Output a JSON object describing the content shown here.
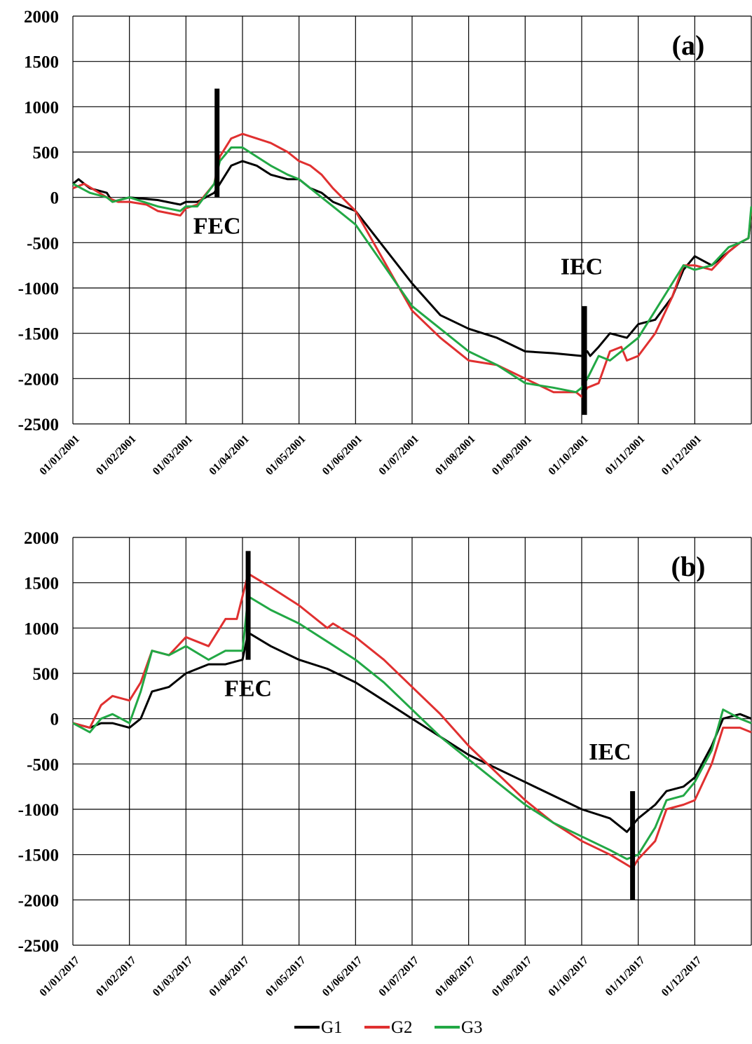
{
  "chart_data": [
    {
      "type": "line",
      "panel_label": "(a)",
      "ylim": [
        -2500,
        2000
      ],
      "yticks": [
        2000,
        1500,
        1000,
        500,
        0,
        -500,
        -1000,
        -1500,
        -2000,
        -2500
      ],
      "xtick_labels": [
        "01/01/2001",
        "01/02/2001",
        "01/03/2001",
        "01/04/2001",
        "01/05/2001",
        "01/06/2001",
        "01/07/2001",
        "01/08/2001",
        "01/09/2001",
        "01/10/2001",
        "01/11/2001",
        "01/12/2001"
      ],
      "x_unit": "month index (0 = 01/01/2001, 12 = 31/12/2001)",
      "grid": true,
      "series": [
        {
          "name": "G1",
          "color": "#000000",
          "x": [
            0,
            0.1,
            0.3,
            0.6,
            0.7,
            1.0,
            1.5,
            1.9,
            2.0,
            2.2,
            2.5,
            2.6,
            2.8,
            3.0,
            3.25,
            3.5,
            3.8,
            4.0,
            4.2,
            4.4,
            4.6,
            5.0,
            5.5,
            6.0,
            6.5,
            7.0,
            7.5,
            8.0,
            8.5,
            9.0,
            9.1,
            9.15,
            9.3,
            9.5,
            9.8,
            10.0,
            10.3,
            10.6,
            10.8,
            11.0,
            11.3,
            11.6,
            11.8,
            11.95,
            12.0
          ],
          "y": [
            150,
            200,
            100,
            50,
            -50,
            0,
            -30,
            -80,
            -50,
            -50,
            50,
            150,
            350,
            400,
            350,
            250,
            200,
            200,
            100,
            50,
            -50,
            -150,
            -550,
            -950,
            -1300,
            -1450,
            -1550,
            -1700,
            -1720,
            -1750,
            -1700,
            -1750,
            -1650,
            -1500,
            -1550,
            -1400,
            -1350,
            -1100,
            -800,
            -650,
            -750,
            -600,
            -500,
            -450,
            -200
          ]
        },
        {
          "name": "G2",
          "color": "#e03030",
          "x": [
            0,
            0.2,
            0.6,
            0.8,
            1.0,
            1.3,
            1.5,
            1.9,
            2.0,
            2.2,
            2.5,
            2.6,
            2.8,
            3.0,
            3.25,
            3.5,
            3.8,
            4.0,
            4.2,
            4.4,
            4.6,
            5.0,
            5.5,
            6.0,
            6.5,
            7.0,
            7.5,
            8.0,
            8.5,
            8.9,
            9.0,
            9.1,
            9.3,
            9.5,
            9.7,
            9.8,
            10.0,
            10.3,
            10.6,
            10.8,
            11.0,
            11.3,
            11.6,
            11.8,
            11.95,
            12.0
          ],
          "y": [
            100,
            150,
            0,
            -50,
            -50,
            -80,
            -150,
            -200,
            -120,
            -80,
            150,
            450,
            650,
            700,
            650,
            600,
            500,
            400,
            350,
            250,
            100,
            -150,
            -700,
            -1250,
            -1550,
            -1800,
            -1850,
            -2000,
            -2150,
            -2150,
            -2200,
            -2100,
            -2050,
            -1700,
            -1650,
            -1800,
            -1750,
            -1500,
            -1100,
            -750,
            -750,
            -800,
            -600,
            -500,
            -450,
            -150
          ]
        },
        {
          "name": "G3",
          "color": "#22a845",
          "x": [
            0,
            0.3,
            0.6,
            0.7,
            1.0,
            1.5,
            1.9,
            2.0,
            2.2,
            2.5,
            2.6,
            2.8,
            3.0,
            3.25,
            3.5,
            3.8,
            4.0,
            4.2,
            4.4,
            4.6,
            5.0,
            5.5,
            6.0,
            6.5,
            7.0,
            7.5,
            8.0,
            8.5,
            8.9,
            9.0,
            9.1,
            9.3,
            9.5,
            9.8,
            10.0,
            10.3,
            10.6,
            10.8,
            11.0,
            11.3,
            11.6,
            11.8,
            11.95,
            12.0
          ],
          "y": [
            150,
            50,
            0,
            -50,
            0,
            -100,
            -150,
            -100,
            -100,
            150,
            400,
            550,
            550,
            450,
            350,
            250,
            200,
            100,
            0,
            -100,
            -300,
            -750,
            -1200,
            -1450,
            -1700,
            -1850,
            -2050,
            -2100,
            -2150,
            -2100,
            -2000,
            -1750,
            -1800,
            -1650,
            -1550,
            -1250,
            -950,
            -750,
            -800,
            -750,
            -550,
            -500,
            -450,
            -100
          ]
        }
      ],
      "annotations": [
        {
          "text": "FEC",
          "x": 2.55,
          "y": -400
        },
        {
          "text": "IEC",
          "x": 9.0,
          "y": -850
        }
      ],
      "markers": [
        {
          "x": 2.55,
          "y_from": 0,
          "y_to": 1200
        },
        {
          "x": 9.05,
          "y_from": -2400,
          "y_to": -1200
        }
      ]
    },
    {
      "type": "line",
      "panel_label": "(b)",
      "ylim": [
        -2500,
        2000
      ],
      "yticks": [
        2000,
        1500,
        1000,
        500,
        0,
        -500,
        -1000,
        -1500,
        -2000,
        -2500
      ],
      "xtick_labels": [
        "01/01/2017",
        "01/02/2017",
        "01/03/2017",
        "01/04/2017",
        "01/05/2017",
        "01/06/2017",
        "01/07/2017",
        "01/08/2017",
        "01/09/2017",
        "01/10/2017",
        "01/11/2017",
        "01/12/2017"
      ],
      "x_unit": "month index (0 = 01/01/2017, 12 = 31/12/2017)",
      "grid": true,
      "series": [
        {
          "name": "G1",
          "color": "#000000",
          "x": [
            0,
            0.3,
            0.5,
            0.7,
            1.0,
            1.2,
            1.4,
            1.7,
            2.0,
            2.4,
            2.7,
            3.0,
            3.1,
            3.5,
            4.0,
            4.5,
            5.0,
            5.5,
            6.0,
            6.5,
            7.0,
            7.5,
            8.0,
            8.5,
            9.0,
            9.5,
            9.8,
            10.0,
            10.3,
            10.5,
            10.8,
            11.0,
            11.3,
            11.5,
            11.8,
            12.0
          ],
          "y": [
            -50,
            -100,
            -50,
            -50,
            -100,
            0,
            300,
            350,
            500,
            600,
            600,
            650,
            950,
            800,
            650,
            550,
            400,
            200,
            0,
            -200,
            -400,
            -550,
            -700,
            -850,
            -1000,
            -1100,
            -1250,
            -1100,
            -950,
            -800,
            -750,
            -650,
            -300,
            0,
            50,
            0
          ]
        },
        {
          "name": "G2",
          "color": "#e03030",
          "x": [
            0,
            0.3,
            0.5,
            0.7,
            1.0,
            1.2,
            1.4,
            1.7,
            2.0,
            2.4,
            2.7,
            2.9,
            3.1,
            3.5,
            4.0,
            4.5,
            4.6,
            5.0,
            5.5,
            6.0,
            6.5,
            7.0,
            7.5,
            8.0,
            8.5,
            9.0,
            9.5,
            9.9,
            10.0,
            10.3,
            10.5,
            10.8,
            11.0,
            11.3,
            11.5,
            11.8,
            12.0
          ],
          "y": [
            -50,
            -100,
            150,
            250,
            200,
            400,
            750,
            700,
            900,
            800,
            1100,
            1100,
            1600,
            1450,
            1250,
            1000,
            1050,
            900,
            650,
            350,
            50,
            -300,
            -600,
            -900,
            -1150,
            -1350,
            -1500,
            -1650,
            -1550,
            -1350,
            -1000,
            -950,
            -900,
            -500,
            -100,
            -100,
            -150
          ]
        },
        {
          "name": "G3",
          "color": "#22a845",
          "x": [
            0,
            0.3,
            0.5,
            0.7,
            1.0,
            1.2,
            1.4,
            1.7,
            2.0,
            2.4,
            2.7,
            3.0,
            3.1,
            3.5,
            4.0,
            4.5,
            5.0,
            5.5,
            6.0,
            6.5,
            7.0,
            7.5,
            8.0,
            8.5,
            9.0,
            9.5,
            9.8,
            10.0,
            10.3,
            10.5,
            10.8,
            11.0,
            11.3,
            11.5,
            11.8,
            12.0
          ],
          "y": [
            -50,
            -150,
            0,
            50,
            -50,
            300,
            750,
            700,
            800,
            650,
            750,
            750,
            1350,
            1200,
            1050,
            850,
            650,
            400,
            100,
            -200,
            -450,
            -700,
            -950,
            -1150,
            -1300,
            -1450,
            -1550,
            -1500,
            -1200,
            -900,
            -850,
            -700,
            -350,
            100,
            0,
            -50
          ]
        }
      ],
      "annotations": [
        {
          "text": "FEC",
          "x": 3.1,
          "y": 250
        },
        {
          "text": "IEC",
          "x": 9.5,
          "y": -450
        }
      ],
      "markers": [
        {
          "x": 3.1,
          "y_from": 650,
          "y_to": 1850
        },
        {
          "x": 9.9,
          "y_from": -2000,
          "y_to": -800
        }
      ]
    }
  ],
  "legend": {
    "placement": "bottom-center",
    "items": [
      {
        "name": "G1",
        "color": "#000000"
      },
      {
        "name": "G2",
        "color": "#e03030"
      },
      {
        "name": "G3",
        "color": "#22a845"
      }
    ]
  }
}
